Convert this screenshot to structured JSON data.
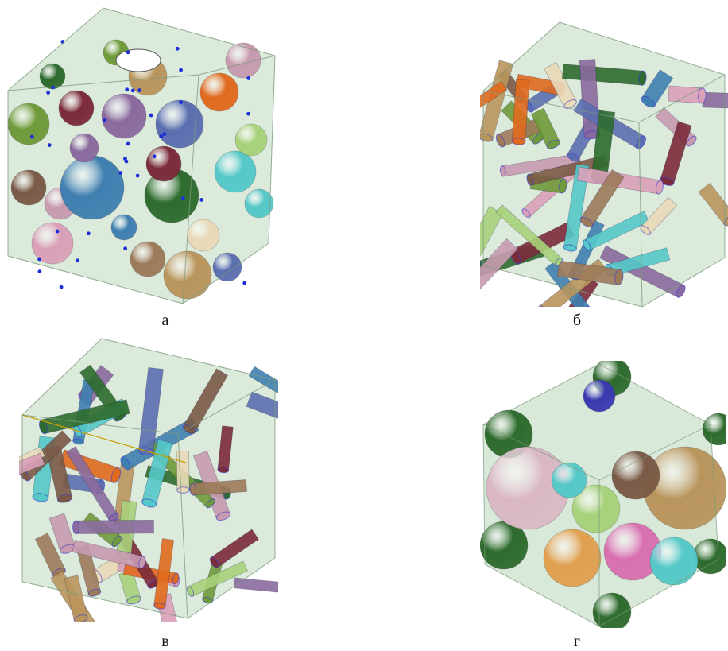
{
  "figure": {
    "panels": [
      {
        "id": "a",
        "caption": "а",
        "content": "spheres"
      },
      {
        "id": "b",
        "caption": "б",
        "content": "cylinders"
      },
      {
        "id": "c",
        "caption": "в",
        "content": "cylinders"
      },
      {
        "id": "d",
        "caption": "г",
        "content": "large-spheres"
      }
    ]
  },
  "colors": {
    "box_fill": "#cfe3cf",
    "box_edge": "#7a9a7a",
    "particle_palette": [
      "#6f9a3a",
      "#c79ab0",
      "#7b2a3a",
      "#8a6a9e",
      "#b9955c",
      "#5b6fb0",
      "#3f7fb0",
      "#2e6b2e",
      "#55c8c8",
      "#d9a0b8",
      "#9c7a5a",
      "#e06a1e",
      "#a7d17a",
      "#7a5a46",
      "#e8d9b8"
    ],
    "marker": "#1a2fd6"
  }
}
